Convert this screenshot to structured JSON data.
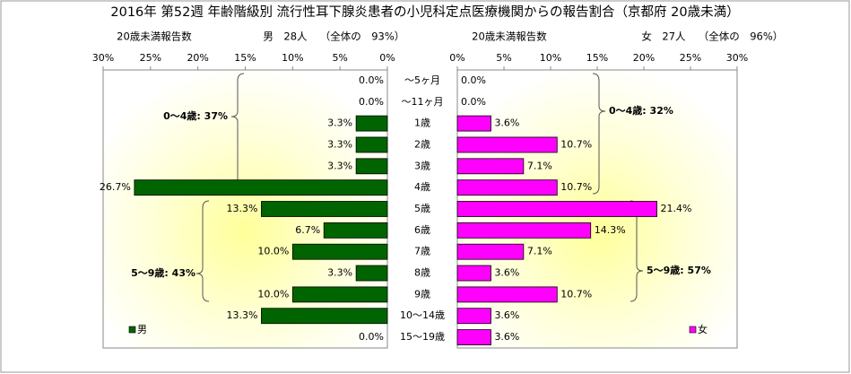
{
  "chart_data": {
    "type": "butterfly",
    "title": "2016年 第52週 年齢階級別 流行性耳下腺炎患者の小児科定点医療機関からの報告割合（京都府 20歳未満）",
    "headers": {
      "left": [
        "20歳未満報告数",
        "男　28人",
        "（全体の　93%）"
      ],
      "right": [
        "20歳未満報告数",
        "女　27人",
        "（全体の　96%）"
      ]
    },
    "categories": [
      "～5ヶ月",
      "～11ヶ月",
      "1歳",
      "2歳",
      "3歳",
      "4歳",
      "5歳",
      "6歳",
      "7歳",
      "8歳",
      "9歳",
      "10～14歳",
      "15～19歳"
    ],
    "series": [
      {
        "name": "男",
        "color": "#006400",
        "side": "left",
        "values": [
          0.0,
          0.0,
          3.3,
          3.3,
          3.3,
          26.7,
          13.3,
          6.7,
          10.0,
          3.3,
          10.0,
          13.3,
          0.0
        ],
        "value_labels": [
          "0.0%",
          "0.0%",
          "3.3%",
          "3.3%",
          "3.3%",
          "26.7%",
          "13.3%",
          "6.7%",
          "10.0%",
          "3.3%",
          "10.0%",
          "13.3%",
          "0.0%"
        ]
      },
      {
        "name": "女",
        "color": "#ff00ff",
        "side": "right",
        "values": [
          0.0,
          0.0,
          3.6,
          10.7,
          7.1,
          10.7,
          21.4,
          14.3,
          7.1,
          3.6,
          10.7,
          3.6,
          3.6
        ],
        "value_labels": [
          "0.0%",
          "0.0%",
          "3.6%",
          "10.7%",
          "7.1%",
          "10.7%",
          "21.4%",
          "14.3%",
          "7.1%",
          "3.6%",
          "10.7%",
          "3.6%",
          "3.6%"
        ]
      }
    ],
    "xlim": [
      0,
      30
    ],
    "xticks": [
      {
        "value": 0,
        "label": "0%"
      },
      {
        "value": 5,
        "label": "5%"
      },
      {
        "value": 10,
        "label": "10%"
      },
      {
        "value": 15,
        "label": "15%"
      },
      {
        "value": 20,
        "label": "20%"
      },
      {
        "value": 25,
        "label": "25%"
      },
      {
        "value": 30,
        "label": "30%"
      }
    ],
    "annotations": [
      "0～4歳: 37%",
      "5～9歳: 43%",
      "0～4歳: 32%",
      "5～9歳: 57%"
    ]
  }
}
